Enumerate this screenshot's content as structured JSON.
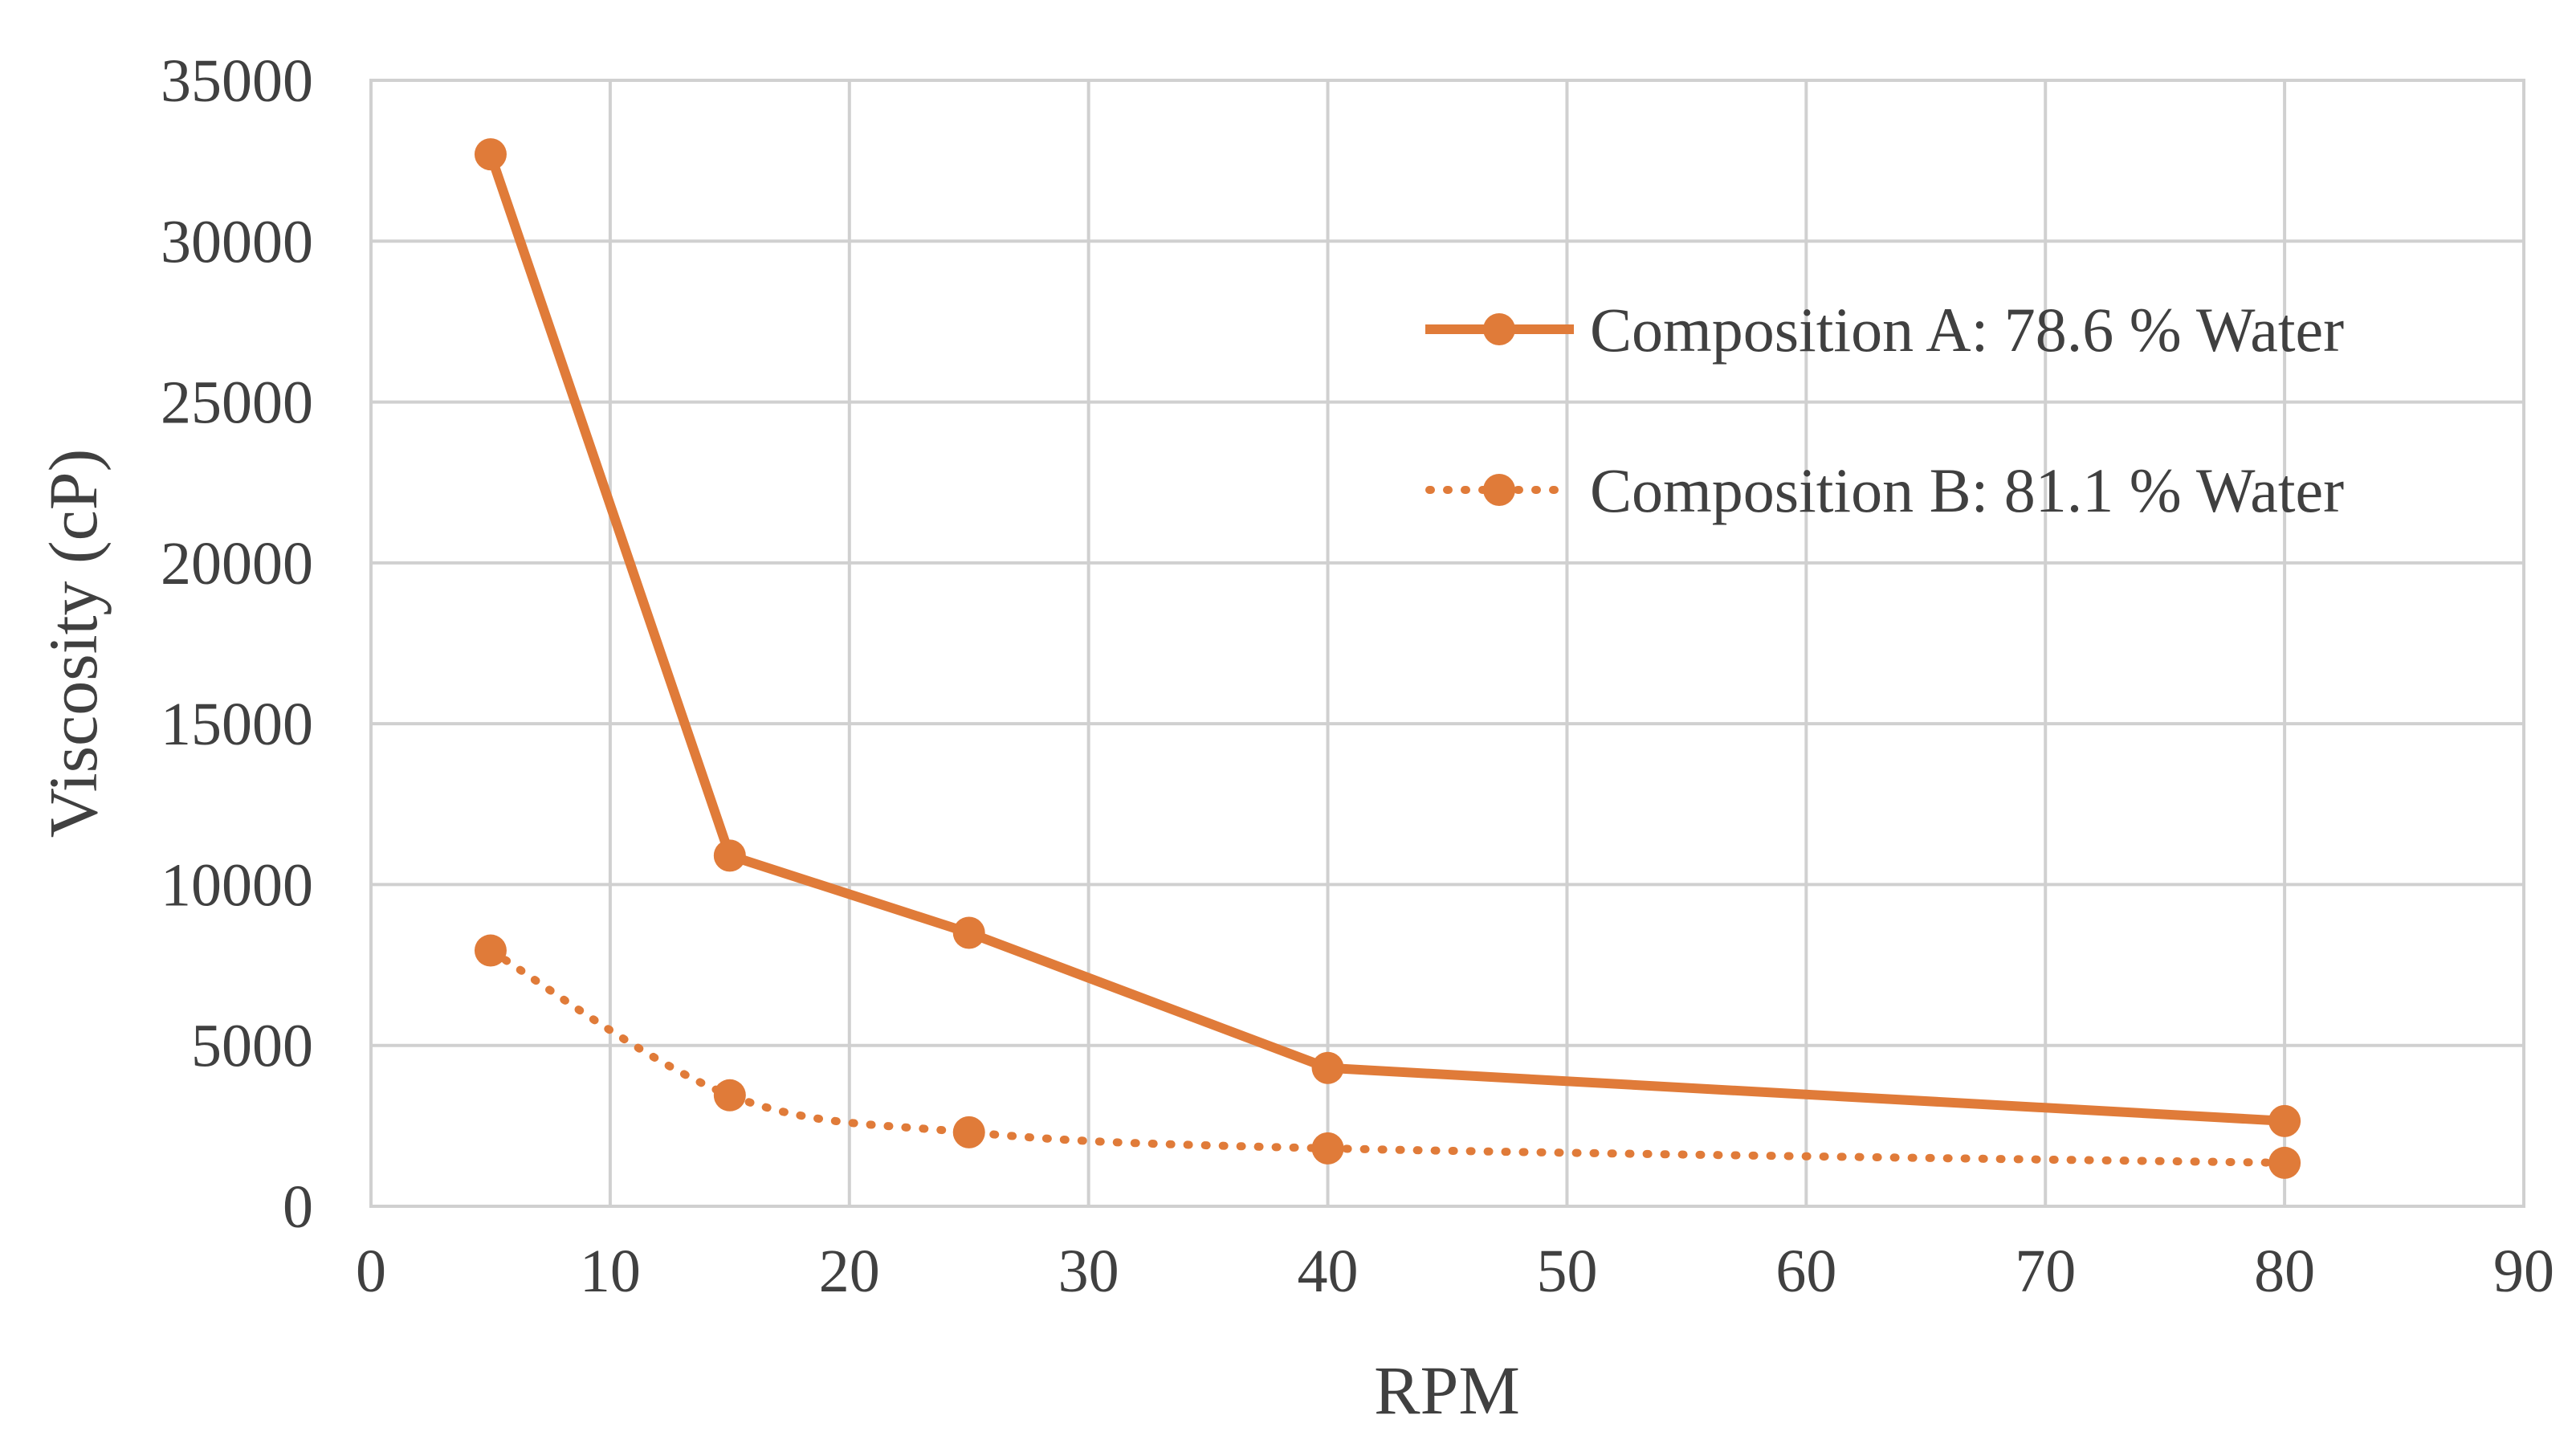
{
  "chart_data": {
    "type": "line",
    "title": "",
    "xlabel": "RPM",
    "ylabel": "Viscosity (cP)",
    "xlim": [
      0,
      90
    ],
    "ylim": [
      0,
      35000
    ],
    "x_ticks": [
      0,
      10,
      20,
      30,
      40,
      50,
      60,
      70,
      80,
      90
    ],
    "y_ticks": [
      0,
      5000,
      10000,
      15000,
      20000,
      25000,
      30000,
      35000
    ],
    "grid": true,
    "legend_position": "right",
    "series": [
      {
        "name": "Composition A: 78.6 % Water",
        "line_style": "solid",
        "color": "#E07B39",
        "x": [
          5,
          15,
          25,
          40,
          80
        ],
        "y": [
          32700,
          10900,
          8500,
          4300,
          2650
        ]
      },
      {
        "name": "Composition B: 81.1 % Water",
        "line_style": "dotted",
        "color": "#E07B39",
        "x": [
          5,
          15,
          25,
          40,
          80
        ],
        "y": [
          7950,
          3450,
          2300,
          1800,
          1350
        ]
      }
    ]
  }
}
